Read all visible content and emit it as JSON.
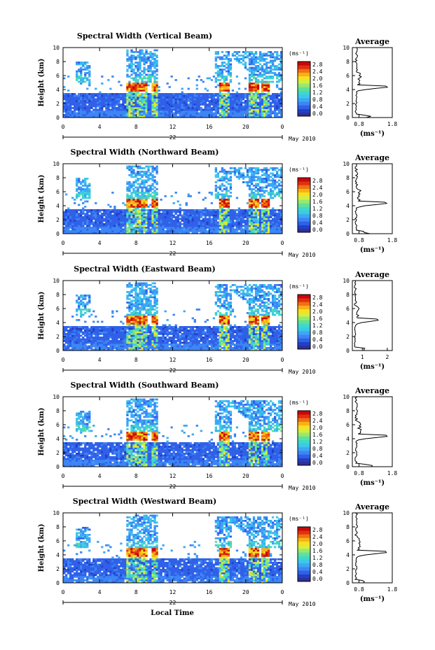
{
  "figure": {
    "x_axis_title": "Local Time",
    "date_label": "May 2010",
    "day_label": "22",
    "height_label": "Height (km)",
    "unit_label": "(ms⁻¹)",
    "avg_title": "Average",
    "colormap": [
      "#303094",
      "#2040c8",
      "#3060e8",
      "#3c86f4",
      "#3ca8f4",
      "#3cc8e8",
      "#40d8c8",
      "#60e098",
      "#98e870",
      "#d0f040",
      "#f8e020",
      "#f8b018",
      "#f07010",
      "#e03010",
      "#c80808"
    ],
    "heatmap_type": "heatmap"
  },
  "panels": [
    {
      "title": "Spectral Width (Vertical Beam)",
      "chart_data": {
        "type": "heatmap",
        "title": "Spectral Width (Vertical Beam)",
        "xlabel": "",
        "ylabel": "Height (km)",
        "xlim": [
          0,
          24
        ],
        "ylim": [
          0,
          10
        ],
        "xticks": [
          "0",
          "4",
          "8",
          "12",
          "16",
          "20",
          "0"
        ],
        "yticks": [
          "0",
          "2",
          "4",
          "6",
          "8",
          "10"
        ],
        "colorbar": {
          "label": "(ms⁻¹)",
          "range": [
            0.0,
            2.8
          ],
          "ticks": [
            "0.0",
            "0.4",
            "0.8",
            "1.2",
            "1.6",
            "2.0",
            "2.4",
            "2.8"
          ]
        },
        "profile": {
          "title": "Average",
          "xlim": [
            0.6,
            1.8
          ],
          "xticks": [
            "0.8",
            "1.8"
          ],
          "xlabel": "(ms⁻¹)"
        }
      }
    },
    {
      "title": "Spectral Width (Northward Beam)",
      "chart_data": {
        "type": "heatmap",
        "title": "Spectral Width (Northward Beam)",
        "xlabel": "",
        "ylabel": "Height (km)",
        "xlim": [
          0,
          24
        ],
        "ylim": [
          0,
          10
        ],
        "xticks": [
          "0",
          "4",
          "8",
          "12",
          "16",
          "20",
          "0"
        ],
        "yticks": [
          "0",
          "2",
          "4",
          "6",
          "8",
          "10"
        ],
        "colorbar": {
          "label": "(ms⁻¹)",
          "range": [
            0.0,
            2.8
          ],
          "ticks": [
            "0.0",
            "0.4",
            "0.8",
            "1.2",
            "1.6",
            "2.0",
            "2.4",
            "2.8"
          ]
        },
        "profile": {
          "title": "Average",
          "xlim": [
            0.6,
            1.8
          ],
          "xticks": [
            "0.8",
            "1.8"
          ],
          "xlabel": "(ms⁻¹)"
        }
      }
    },
    {
      "title": "Spectral Width (Eastward Beam)",
      "chart_data": {
        "type": "heatmap",
        "title": "Spectral Width (Eastward Beam)",
        "xlabel": "",
        "ylabel": "Height (km)",
        "xlim": [
          0,
          24
        ],
        "ylim": [
          0,
          10
        ],
        "xticks": [
          "0",
          "4",
          "8",
          "12",
          "16",
          "20",
          "0"
        ],
        "yticks": [
          "0",
          "2",
          "4",
          "6",
          "8",
          "10"
        ],
        "colorbar": {
          "label": "(ms⁻¹)",
          "range": [
            0.0,
            2.8
          ],
          "ticks": [
            "0.0",
            "0.4",
            "0.8",
            "1.2",
            "1.6",
            "2.0",
            "2.4",
            "2.8"
          ]
        },
        "profile": {
          "title": "Average",
          "xlim": [
            0.6,
            2.2
          ],
          "xticks": [
            "1",
            "2"
          ],
          "xlabel": "(ms⁻¹)"
        }
      }
    },
    {
      "title": "Spectral Width (Southward Beam)",
      "chart_data": {
        "type": "heatmap",
        "title": "Spectral Width (Southward Beam)",
        "xlabel": "",
        "ylabel": "Height (km)",
        "xlim": [
          0,
          24
        ],
        "ylim": [
          0,
          10
        ],
        "xticks": [
          "0",
          "4",
          "8",
          "12",
          "16",
          "20",
          "0"
        ],
        "yticks": [
          "0",
          "2",
          "4",
          "6",
          "8",
          "10"
        ],
        "colorbar": {
          "label": "(ms⁻¹)",
          "range": [
            0.0,
            2.8
          ],
          "ticks": [
            "0.0",
            "0.4",
            "0.8",
            "1.2",
            "1.6",
            "2.0",
            "2.4",
            "2.8"
          ]
        },
        "profile": {
          "title": "Average",
          "xlim": [
            0.6,
            1.8
          ],
          "xticks": [
            "0.8",
            "1.8"
          ],
          "xlabel": "(ms⁻¹)"
        }
      }
    },
    {
      "title": "Spectral Width (Westward Beam)",
      "chart_data": {
        "type": "heatmap",
        "title": "Spectral Width (Westward Beam)",
        "xlabel": "Local Time",
        "ylabel": "Height (km)",
        "xlim": [
          0,
          24
        ],
        "ylim": [
          0,
          10
        ],
        "xticks": [
          "0",
          "4",
          "8",
          "12",
          "16",
          "20",
          "0"
        ],
        "yticks": [
          "0",
          "2",
          "4",
          "6",
          "8",
          "10"
        ],
        "colorbar": {
          "label": "(ms⁻¹)",
          "range": [
            0.0,
            2.8
          ],
          "ticks": [
            "0.0",
            "0.4",
            "0.8",
            "1.2",
            "1.6",
            "2.0",
            "2.4",
            "2.8"
          ]
        },
        "profile": {
          "title": "Average",
          "xlim": [
            0.6,
            1.8
          ],
          "xticks": [
            "0.8",
            "1.8"
          ],
          "xlabel": "(ms⁻¹)"
        }
      }
    }
  ]
}
